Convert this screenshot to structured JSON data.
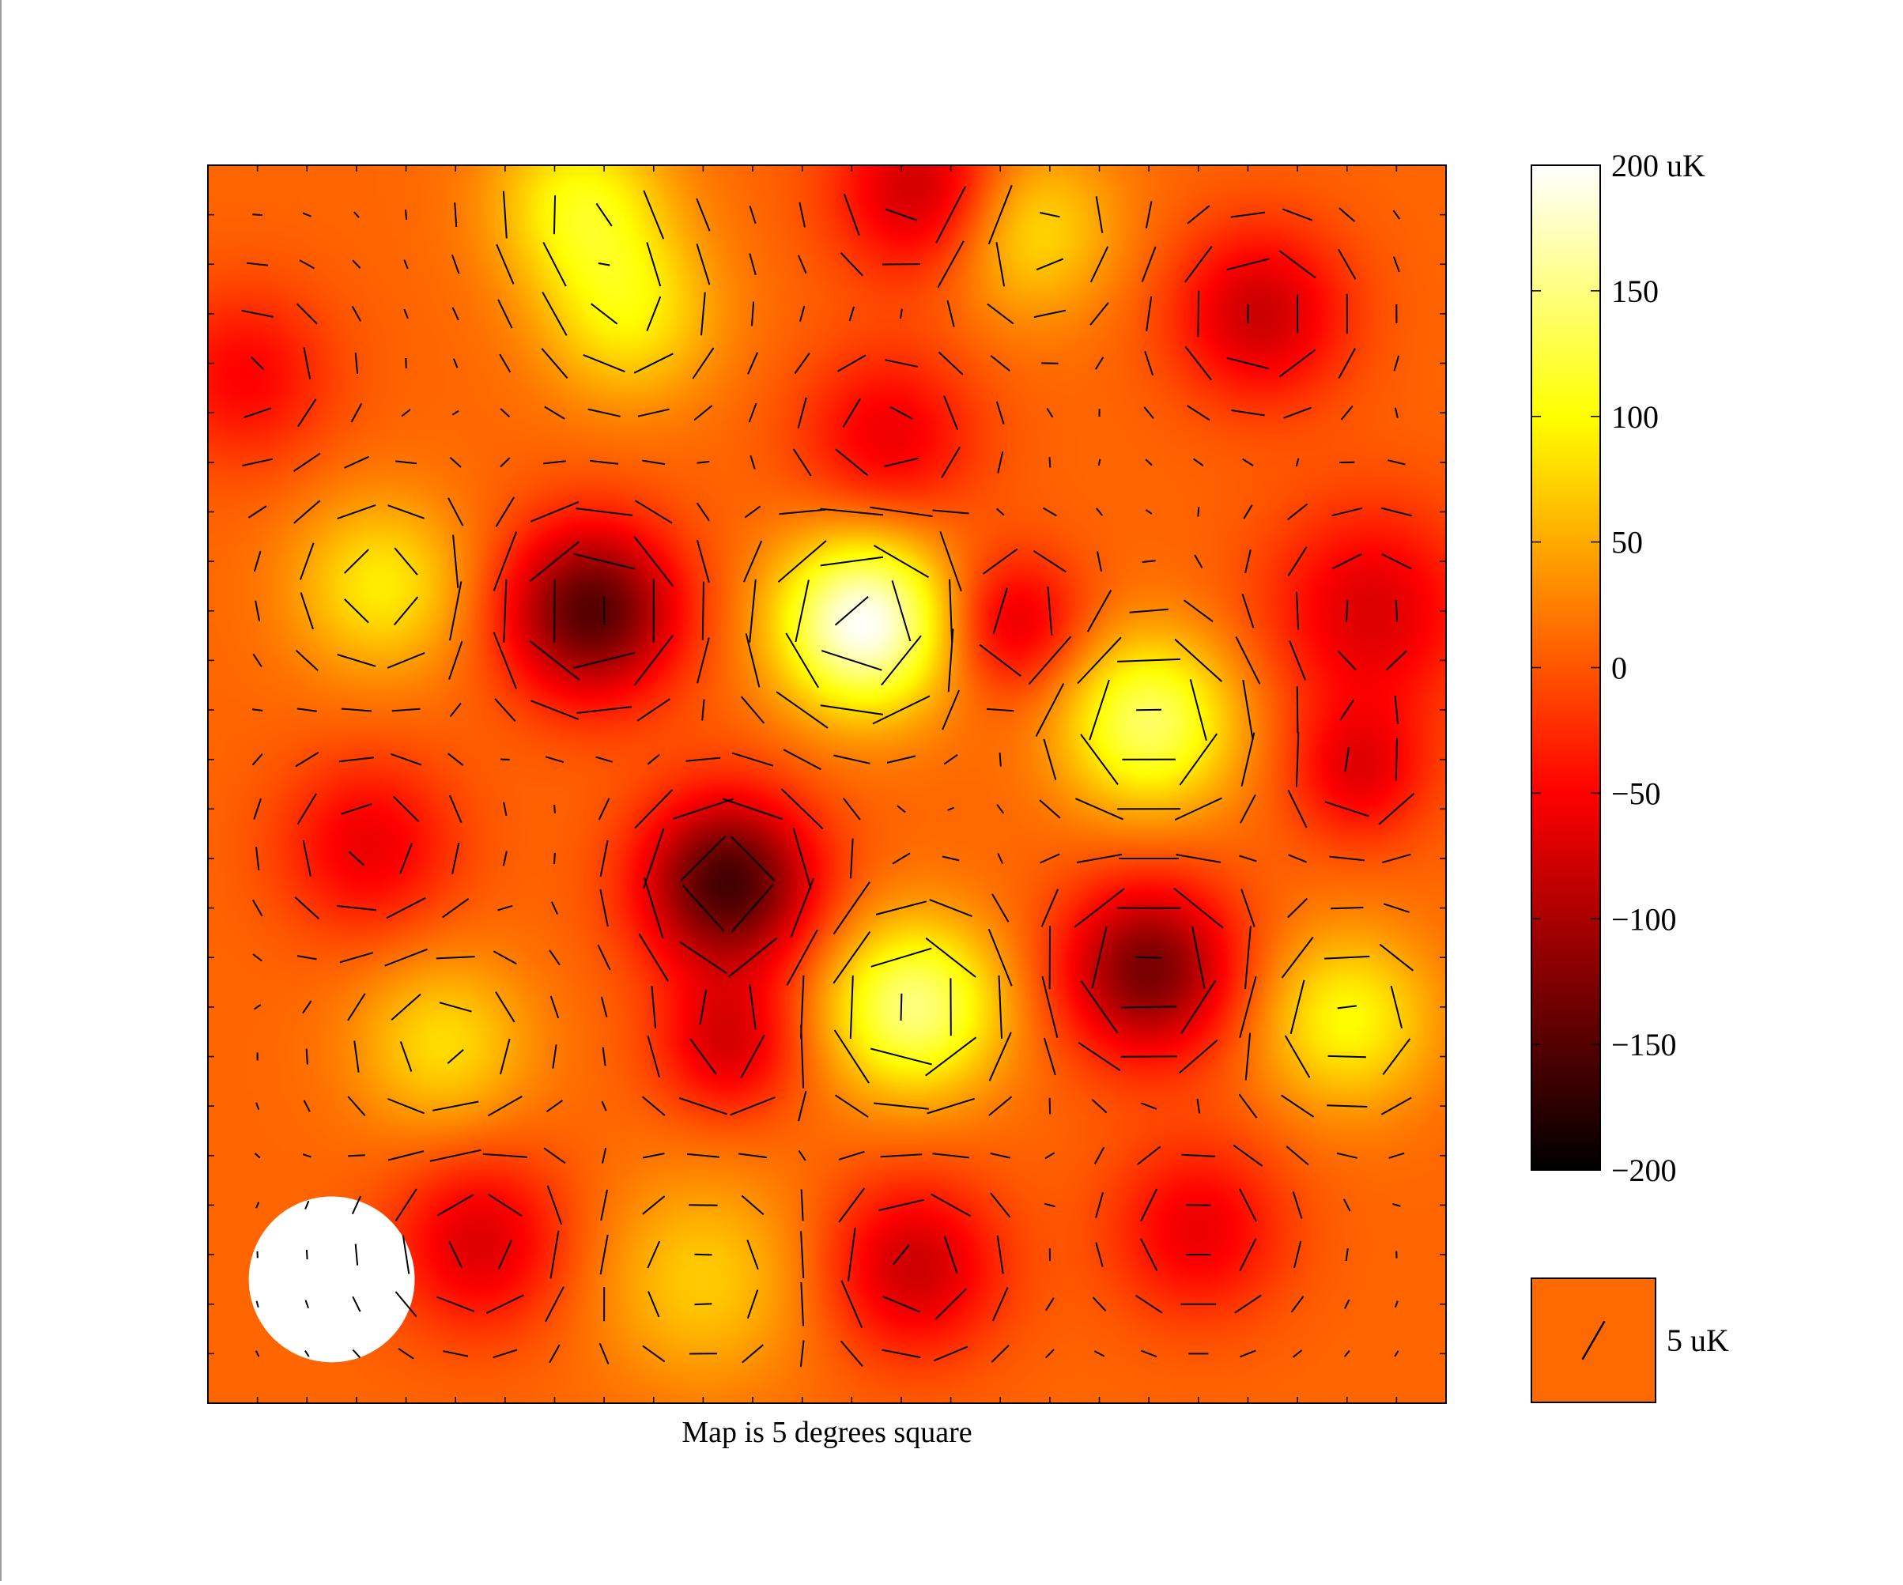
{
  "chart_data": {
    "type": "heatmap",
    "caption": "Map is 5 degrees square",
    "colorbar": {
      "range": [
        -200,
        200
      ],
      "ticks": [
        {
          "value": 200,
          "label": "200 uK"
        },
        {
          "value": 150,
          "label": "150"
        },
        {
          "value": 100,
          "label": "100"
        },
        {
          "value": 50,
          "label": "50"
        },
        {
          "value": 0,
          "label": "0"
        },
        {
          "value": -50,
          "label": "−50"
        },
        {
          "value": -100,
          "label": "−100"
        },
        {
          "value": -150,
          "label": "−150"
        },
        {
          "value": -200,
          "label": "−200"
        }
      ],
      "colormap": "hot"
    },
    "polarization_key": {
      "label": "5 uK",
      "magnitude": 5,
      "angle_deg": 60
    },
    "grid": {
      "cols": 24,
      "rows": 24
    },
    "temperature_field": {
      "background": 10,
      "blobs": [
        {
          "x": 0.3,
          "y": 0.03,
          "amp": 90,
          "sig": 0.05
        },
        {
          "x": 0.34,
          "y": 0.12,
          "amp": 80,
          "sig": 0.05
        },
        {
          "x": 0.66,
          "y": 0.05,
          "amp": 80,
          "sig": 0.05
        },
        {
          "x": 0.14,
          "y": 0.34,
          "amp": 80,
          "sig": 0.05
        },
        {
          "x": 0.53,
          "y": 0.37,
          "amp": 190,
          "sig": 0.05
        },
        {
          "x": 0.76,
          "y": 0.45,
          "amp": 130,
          "sig": 0.05
        },
        {
          "x": 0.57,
          "y": 0.68,
          "amp": 140,
          "sig": 0.05
        },
        {
          "x": 0.92,
          "y": 0.69,
          "amp": 90,
          "sig": 0.05
        },
        {
          "x": 0.19,
          "y": 0.71,
          "amp": 70,
          "sig": 0.05
        },
        {
          "x": 0.4,
          "y": 0.9,
          "amp": 60,
          "sig": 0.06
        },
        {
          "x": 0.58,
          "y": 0.02,
          "amp": -100,
          "sig": 0.05
        },
        {
          "x": 0.85,
          "y": 0.12,
          "amp": -90,
          "sig": 0.05
        },
        {
          "x": 0.03,
          "y": 0.17,
          "amp": -60,
          "sig": 0.05
        },
        {
          "x": 0.31,
          "y": 0.36,
          "amp": -160,
          "sig": 0.05
        },
        {
          "x": 0.65,
          "y": 0.37,
          "amp": -80,
          "sig": 0.04
        },
        {
          "x": 0.42,
          "y": 0.58,
          "amp": -170,
          "sig": 0.05
        },
        {
          "x": 0.13,
          "y": 0.55,
          "amp": -70,
          "sig": 0.05
        },
        {
          "x": 0.76,
          "y": 0.65,
          "amp": -140,
          "sig": 0.05
        },
        {
          "x": 0.42,
          "y": 0.71,
          "amp": -80,
          "sig": 0.04
        },
        {
          "x": 0.94,
          "y": 0.36,
          "amp": -80,
          "sig": 0.06
        },
        {
          "x": 0.22,
          "y": 0.87,
          "amp": -80,
          "sig": 0.05
        },
        {
          "x": 0.57,
          "y": 0.89,
          "amp": -90,
          "sig": 0.05
        },
        {
          "x": 0.8,
          "y": 0.86,
          "amp": -70,
          "sig": 0.05
        },
        {
          "x": 0.55,
          "y": 0.22,
          "amp": -70,
          "sig": 0.05
        },
        {
          "x": 0.93,
          "y": 0.49,
          "amp": -70,
          "sig": 0.04
        }
      ]
    },
    "mask_circle": {
      "x": 0.1,
      "y": 0.9,
      "r": 0.067
    }
  },
  "colors": {
    "frame": "#000000",
    "mask": "#ffffff",
    "key_background": "#ff6a00",
    "vector": "#000000"
  }
}
